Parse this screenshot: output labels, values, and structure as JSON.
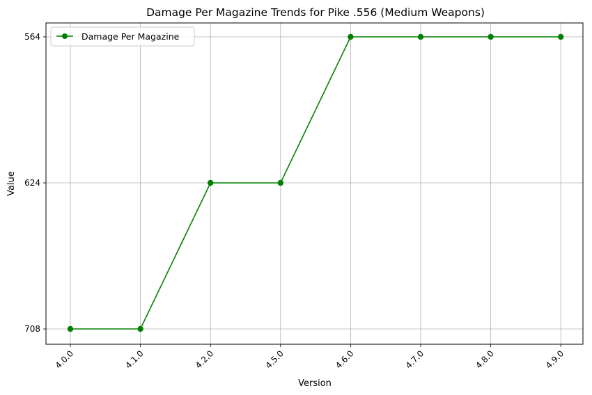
{
  "chart_data": {
    "type": "line",
    "title": "Damage Per Magazine Trends for Pike .556 (Medium Weapons)",
    "xlabel": "Version",
    "ylabel": "Value",
    "categories": [
      "4.0.0",
      "4.1.0",
      "4.2.0",
      "4.5.0",
      "4.6.0",
      "4.7.0",
      "4.8.0",
      "4.9.0"
    ],
    "y_axis": {
      "type": "categorical",
      "ticks": [
        "708",
        "624",
        "564"
      ]
    },
    "series": [
      {
        "name": "Damage Per Magazine",
        "color": "#008000",
        "marker": "circle",
        "values": [
          "708",
          "708",
          "624",
          "624",
          "564",
          "564",
          "564",
          "564"
        ]
      }
    ],
    "grid": true,
    "legend": "top-left"
  }
}
